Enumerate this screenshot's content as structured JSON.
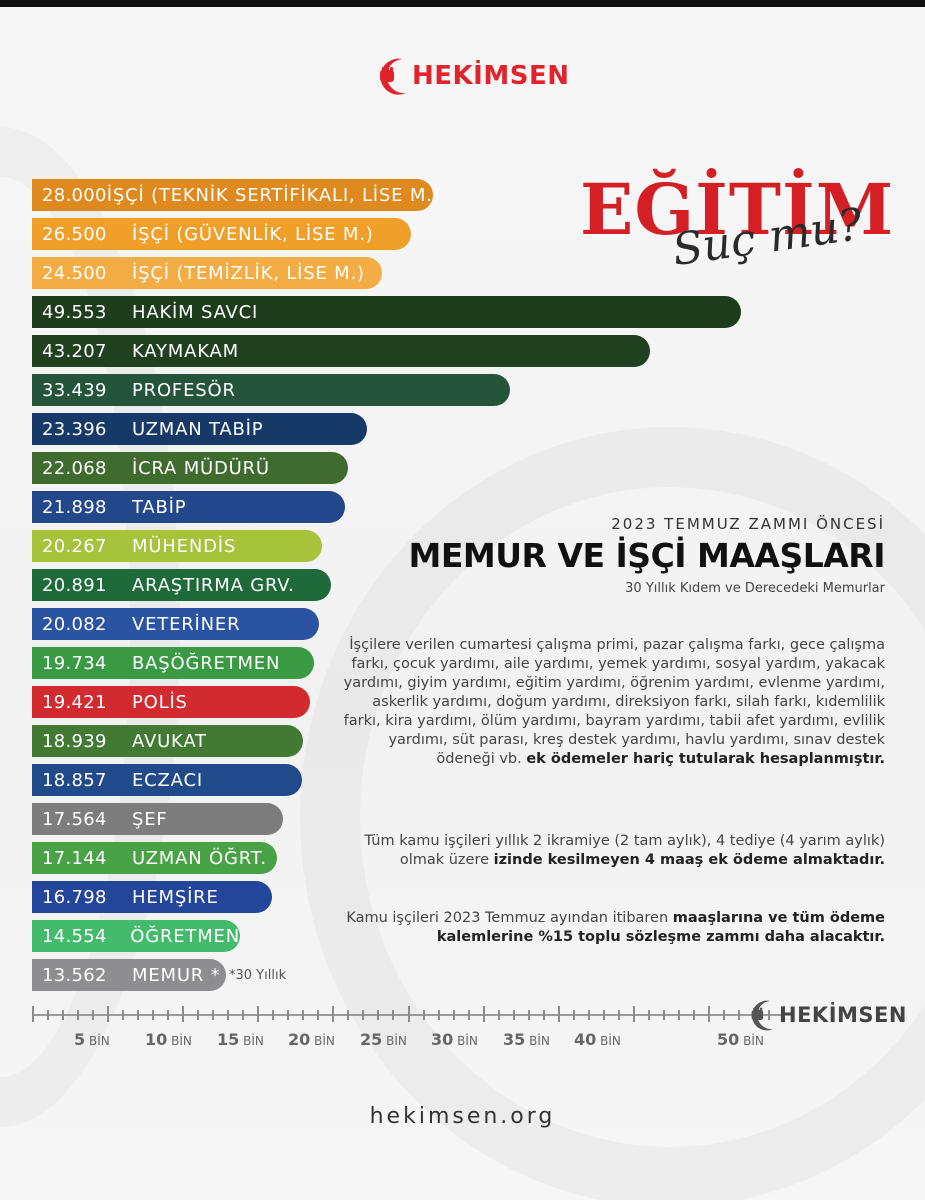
{
  "brand": {
    "name": "HEKİMSEN",
    "website": "hekimsen.org"
  },
  "headline": {
    "main": "EĞİTİM",
    "script": "Suç mu?"
  },
  "chart_data": {
    "type": "bar",
    "orientation": "horizontal",
    "categories": [
      "İŞÇİ (TEKNİK SERTİFİKALI, LİSE M.)",
      "İŞÇİ (GÜVENLİK, LİSE M.)",
      "İŞÇİ (TEMİZLİK, LİSE M.)",
      "HAKİM SAVCI",
      "KAYMAKAM",
      "PROFESÖR",
      "UZMAN TABİP",
      "İCRA MÜDÜRÜ",
      "TABİP",
      "MÜHENDİS",
      "ARAŞTIRMA GRV.",
      "VETERİNER",
      "BAŞÖĞRETMEN",
      "POLİS",
      "AVUKAT",
      "ECZACI",
      "ŞEF",
      "UZMAN ÖĞRT.",
      "HEMŞİRE",
      "ÖĞRETMEN",
      "MEMUR *"
    ],
    "values": [
      28000,
      26500,
      24500,
      49553,
      43207,
      33439,
      23396,
      22068,
      21898,
      20267,
      20891,
      20082,
      19734,
      19421,
      18939,
      18857,
      17564,
      17144,
      16798,
      14554,
      13562
    ],
    "value_labels": [
      "28.000",
      "26.500",
      "24.500",
      "49.553",
      "43.207",
      "33.439",
      "23.396",
      "22.068",
      "21.898",
      "20.267",
      "20.891",
      "20.082",
      "19.734",
      "19.421",
      "18.939",
      "18.857",
      "17.564",
      "17.144",
      "16.798",
      "14.554",
      "13.562"
    ],
    "colors": [
      "#df8a1f",
      "#f0a02a",
      "#f4ac45",
      "#1e3d1c",
      "#21401f",
      "#24553a",
      "#173968",
      "#3f6b2e",
      "#22478a",
      "#a7c23b",
      "#1e6a3b",
      "#2a53a2",
      "#3a9a43",
      "#d12a2f",
      "#427a34",
      "#214a8a",
      "#7d7d7d",
      "#4aa246",
      "#24469a",
      "#44bb6c",
      "#8e8e92"
    ],
    "annotations": [
      {
        "category": "MEMUR *",
        "text": "*30 Yıllık"
      }
    ],
    "x_ticks": [
      {
        "value": 5000,
        "num": "5",
        "unit": "BİN"
      },
      {
        "value": 10000,
        "num": "10",
        "unit": "BİN"
      },
      {
        "value": 15000,
        "num": "15",
        "unit": "BİN"
      },
      {
        "value": 20000,
        "num": "20",
        "unit": "BİN"
      },
      {
        "value": 25000,
        "num": "25",
        "unit": "BİN"
      },
      {
        "value": 30000,
        "num": "30",
        "unit": "BİN"
      },
      {
        "value": 35000,
        "num": "35",
        "unit": "BİN"
      },
      {
        "value": 40000,
        "num": "40",
        "unit": "BİN"
      },
      {
        "value": 50000,
        "num": "50",
        "unit": "BİN"
      }
    ],
    "xlim": [
      0,
      52500
    ],
    "title": "MEMUR VE İŞÇİ MAAŞLARI",
    "subtitle": "2023 TEMMUZ ZAMMI ÖNCESİ",
    "note": "30 Yıllık Kıdem ve Derecedeki Memurlar",
    "grid": false
  },
  "paragraphs": {
    "p1_text": "İşçilere verilen cumartesi çalışma primi, pazar çalışma farkı, gece çalışma farkı, çocuk yardımı, aile yardımı, yemek yardımı, sosyal yardım, yakacak yardımı, giyim yardımı, eğitim yardımı, öğrenim yardımı, evlenme yardımı, askerlik yardımı, doğum yardımı, direksiyon farkı, silah farkı, kıdemlilik farkı, kira yardımı, ölüm yardımı, bayram yardımı, tabii afet yardımı, evlilik yardımı, süt parası, kreş destek yardımı, havlu yardımı, sınav destek ödeneği vb. ",
    "p1_bold": "ek ödemeler hariç tutularak hesaplanmıştır.",
    "p2_text": "Tüm kamu işçileri yıllık 2 ikramiye (2 tam aylık), 4 tediye (4 yarım aylık) olmak üzere ",
    "p2_bold": "izinde kesilmeyen 4 maaş ek ödeme almaktadır.",
    "p3_text": "Kamu işçileri 2023 Temmuz ayından itibaren ",
    "p3_bold": "maaşlarına ve tüm ödeme kalemlerine %15 toplu sözleşme zammı daha alacaktır."
  }
}
